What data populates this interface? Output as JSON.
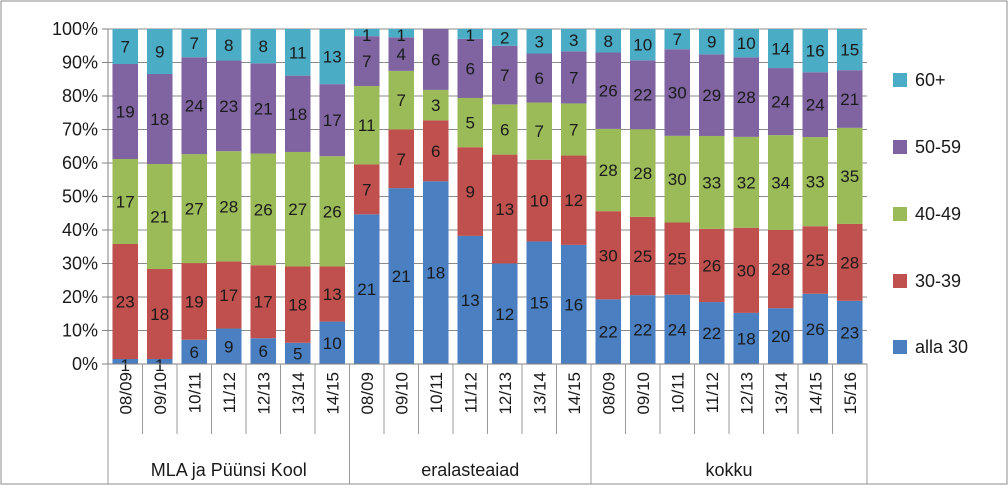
{
  "chart_data": {
    "type": "bar",
    "stacked": "percent",
    "groups": [
      {
        "label": "MLA ja Püünsi Kool",
        "categories": [
          "08/09",
          "09/10",
          "10/11",
          "11/12",
          "12/13",
          "13/14",
          "14/15"
        ]
      },
      {
        "label": "eralasteaiad",
        "categories": [
          "08/09",
          "09/10",
          "10/11",
          "11/12",
          "12/13",
          "13/14",
          "14/15"
        ]
      },
      {
        "label": "kokku",
        "categories": [
          "08/09",
          "09/10",
          "10/11",
          "11/12",
          "12/13",
          "13/14",
          "14/15",
          "15/16"
        ]
      }
    ],
    "categories": [
      "08/09",
      "09/10",
      "10/11",
      "11/12",
      "12/13",
      "13/14",
      "14/15",
      "08/09",
      "09/10",
      "10/11",
      "11/12",
      "12/13",
      "13/14",
      "14/15",
      "08/09",
      "09/10",
      "10/11",
      "11/12",
      "12/13",
      "13/14",
      "14/15",
      "15/16"
    ],
    "series": [
      {
        "name": "alla 30",
        "color": "#4a7fc1",
        "values": [
          1,
          1,
          6,
          9,
          6,
          5,
          10,
          21,
          21,
          18,
          13,
          12,
          15,
          16,
          22,
          22,
          24,
          22,
          18,
          20,
          26,
          23
        ]
      },
      {
        "name": "30-39",
        "color": "#c0504d",
        "values": [
          23,
          18,
          19,
          17,
          17,
          18,
          13,
          7,
          7,
          6,
          9,
          13,
          10,
          12,
          30,
          25,
          25,
          26,
          30,
          28,
          25,
          28
        ]
      },
      {
        "name": "40-49",
        "color": "#9bbb59",
        "values": [
          17,
          21,
          27,
          28,
          26,
          27,
          26,
          11,
          7,
          3,
          5,
          6,
          7,
          7,
          28,
          28,
          30,
          33,
          32,
          34,
          33,
          35
        ]
      },
      {
        "name": "50-59",
        "color": "#8064a2",
        "values": [
          19,
          18,
          24,
          23,
          21,
          18,
          17,
          7,
          4,
          6,
          6,
          7,
          6,
          7,
          26,
          22,
          30,
          29,
          28,
          24,
          24,
          21
        ]
      },
      {
        "name": "60+",
        "color": "#4bacc6",
        "values": [
          7,
          9,
          7,
          8,
          8,
          11,
          13,
          1,
          1,
          0,
          1,
          2,
          3,
          3,
          8,
          10,
          7,
          9,
          10,
          14,
          16,
          15
        ]
      }
    ],
    "y_ticks": [
      "0%",
      "10%",
      "20%",
      "30%",
      "40%",
      "50%",
      "60%",
      "70%",
      "80%",
      "90%",
      "100%"
    ],
    "ylim": [
      0,
      100
    ],
    "legend_position": "right",
    "title": "",
    "xlabel": "",
    "ylabel": ""
  }
}
